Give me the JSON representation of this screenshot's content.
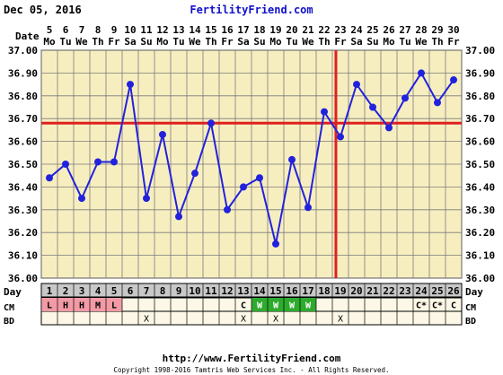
{
  "header": {
    "date": "Dec 05, 2016",
    "brand": "FertilityFriend.com"
  },
  "footer": {
    "url": "http://www.FertilityFriend.com",
    "copyright": "Copyright 1998-2016 Tamtris Web Services Inc. - All Rights Reserved."
  },
  "row_labels": {
    "date": "Date",
    "day": "Day",
    "cm": "CM",
    "bd": "BD"
  },
  "chart_data": {
    "type": "line",
    "dates": [
      "5",
      "6",
      "7",
      "8",
      "9",
      "10",
      "11",
      "12",
      "13",
      "14",
      "15",
      "16",
      "17",
      "18",
      "19",
      "20",
      "21",
      "22",
      "23",
      "24",
      "25",
      "26",
      "27",
      "28",
      "29",
      "30"
    ],
    "weekdays": [
      "Mo",
      "Tu",
      "We",
      "Th",
      "Fr",
      "Sa",
      "Su",
      "Mo",
      "Tu",
      "We",
      "Th",
      "Fr",
      "Sa",
      "Su",
      "Mo",
      "Tu",
      "We",
      "Th",
      "Fr",
      "Sa",
      "Su",
      "Mo",
      "Tu",
      "We",
      "Th",
      "Fr"
    ],
    "cycle_days": [
      "1",
      "2",
      "3",
      "4",
      "5",
      "6",
      "7",
      "8",
      "9",
      "10",
      "11",
      "12",
      "13",
      "14",
      "15",
      "16",
      "17",
      "18",
      "19",
      "20",
      "21",
      "22",
      "23",
      "24",
      "25",
      "26"
    ],
    "series": [
      {
        "values": [
          36.44,
          36.5,
          36.35,
          36.51,
          36.51,
          36.85,
          36.35,
          36.63,
          36.27,
          36.46,
          36.68,
          36.3,
          36.4,
          36.44,
          36.15,
          36.52,
          36.31,
          36.73,
          36.62,
          36.85,
          36.75,
          36.66,
          36.79,
          36.9,
          36.77,
          36.87
        ]
      }
    ],
    "yticks": [
      "37.00",
      "36.90",
      "36.80",
      "36.70",
      "36.60",
      "36.50",
      "36.40",
      "36.30",
      "36.20",
      "36.10",
      "36.00"
    ],
    "ylim": [
      36.0,
      37.0
    ],
    "coverline": 36.68,
    "ovulation_day": 19,
    "cm": [
      {
        "day": 1,
        "label": "L",
        "type": "menses"
      },
      {
        "day": 2,
        "label": "H",
        "type": "menses"
      },
      {
        "day": 3,
        "label": "H",
        "type": "menses"
      },
      {
        "day": 4,
        "label": "M",
        "type": "menses"
      },
      {
        "day": 5,
        "label": "L",
        "type": "menses"
      },
      {
        "day": 13,
        "label": "C",
        "type": "cm"
      },
      {
        "day": 14,
        "label": "W",
        "type": "fertile"
      },
      {
        "day": 15,
        "label": "W",
        "type": "fertile"
      },
      {
        "day": 16,
        "label": "W",
        "type": "fertile"
      },
      {
        "day": 17,
        "label": "W",
        "type": "fertile"
      },
      {
        "day": 24,
        "label": "C*",
        "type": "cm"
      },
      {
        "day": 25,
        "label": "C*",
        "type": "cm"
      },
      {
        "day": 26,
        "label": "C",
        "type": "cm"
      }
    ],
    "bd": [
      7,
      13,
      15,
      19
    ],
    "bd_mark": "X",
    "grid": true,
    "colors": {
      "plot_bg": "#f7eec0",
      "grid": "#7a7a7a",
      "line": "#2222dd",
      "coverline": "#e02020",
      "day_row": "#c8c8c8",
      "row_bg": "#fcf7e6",
      "menses": "#f29aa5",
      "fertile": "#2eaa2e",
      "header_text": "#1111cc"
    }
  }
}
